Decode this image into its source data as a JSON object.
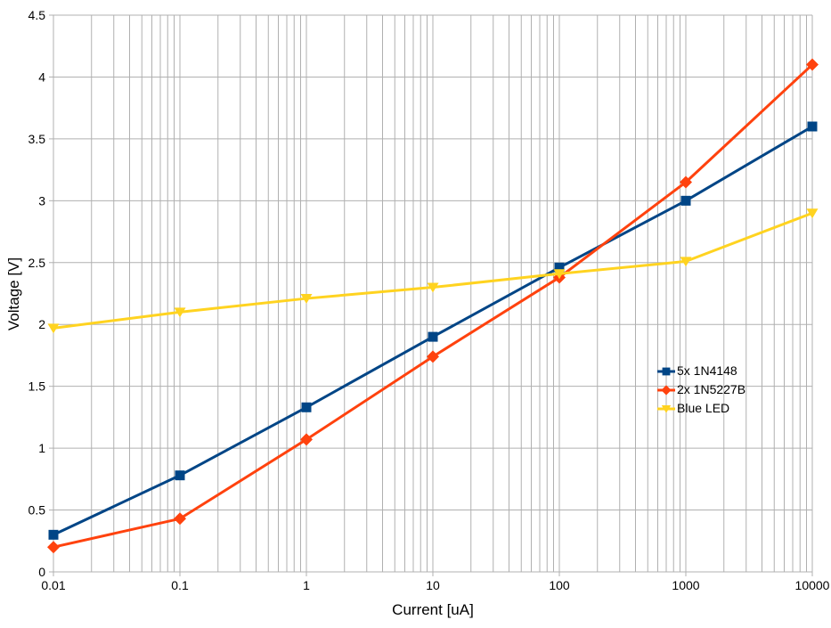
{
  "chart_data": {
    "type": "line",
    "title": "",
    "xlabel": "Current [uA]",
    "ylabel": "Voltage [V]",
    "x_scale": "log",
    "xlim": [
      0.01,
      10000
    ],
    "ylim": [
      0,
      4.5
    ],
    "x_tick_labels": [
      "0.01",
      "0.1",
      "1",
      "10",
      "100",
      "1000",
      "10000"
    ],
    "y_tick_labels": [
      "0",
      "0.5",
      "1",
      "1.5",
      "2",
      "2.5",
      "3",
      "3.5",
      "4",
      "4.5"
    ],
    "grid": {
      "major": true,
      "minor_x_log": true,
      "color": "#b0b0b0"
    },
    "legend": {
      "position": "right-middle",
      "border": false,
      "background": "transparent"
    },
    "x": [
      0.01,
      0.1,
      1,
      10,
      100,
      1000,
      10000
    ],
    "series": [
      {
        "name": "5x 1N4148",
        "color": "#004586",
        "marker": "square",
        "values": [
          0.3,
          0.78,
          1.33,
          1.9,
          2.46,
          3.0,
          3.6
        ]
      },
      {
        "name": "2x 1N5227B",
        "color": "#FF420E",
        "marker": "diamond",
        "values": [
          0.2,
          0.43,
          1.07,
          1.74,
          2.38,
          3.15,
          4.1
        ]
      },
      {
        "name": "Blue LED",
        "color": "#FFD320",
        "marker": "triangle-down",
        "values": [
          1.97,
          2.1,
          2.21,
          2.3,
          2.41,
          2.51,
          2.9
        ]
      }
    ],
    "colors": {
      "background": "#ffffff",
      "text": "#000000",
      "axis": "#b0b0b0"
    }
  }
}
